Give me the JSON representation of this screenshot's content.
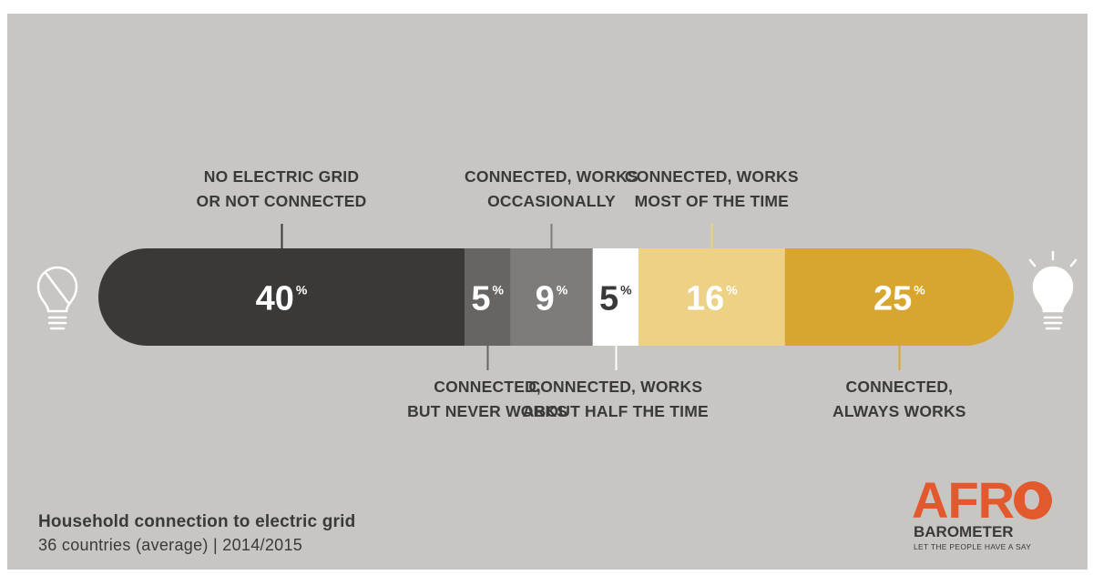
{
  "chart_data": {
    "type": "bar",
    "orientation": "horizontal-stacked",
    "categories": [
      "NO ELECTRIC GRID OR NOT CONNECTED",
      "CONNECTED, BUT NEVER WORKS",
      "CONNECTED, WORKS OCCASIONALLY",
      "CONNECTED, WORKS ABOUT HALF THE TIME",
      "CONNECTED, WORKS MOST OF THE TIME",
      "CONNECTED, ALWAYS WORKS"
    ],
    "values": [
      40,
      5,
      9,
      5,
      16,
      25
    ],
    "unit": "%",
    "segments": [
      {
        "label_lines": [
          "NO ELECTRIC GRID",
          "OR NOT CONNECTED"
        ],
        "value": 40,
        "value_text": "40",
        "color": "#3a3937",
        "text_color": "#ffffff",
        "label_side": "top"
      },
      {
        "label_lines": [
          "CONNECTED,",
          "BUT NEVER WORKS"
        ],
        "value": 5,
        "value_text": "5",
        "color": "#666564",
        "text_color": "#ffffff",
        "label_side": "bottom"
      },
      {
        "label_lines": [
          "CONNECTED, WORKS",
          "OCCASIONALLY"
        ],
        "value": 9,
        "value_text": "9",
        "color": "#7d7c7b",
        "text_color": "#ffffff",
        "label_side": "top"
      },
      {
        "label_lines": [
          "CONNECTED, WORKS",
          "ABOUT HALF THE TIME"
        ],
        "value": 5,
        "value_text": "5",
        "color": "#ffffff",
        "text_color": "#3a3937",
        "label_side": "bottom"
      },
      {
        "label_lines": [
          "CONNECTED, WORKS",
          "MOST OF THE TIME"
        ],
        "value": 16,
        "value_text": "16",
        "color": "#edd286",
        "text_color": "#ffffff",
        "label_side": "top"
      },
      {
        "label_lines": [
          "CONNECTED,",
          "ALWAYS WORKS"
        ],
        "value": 25,
        "value_text": "25",
        "color": "#d8a52e",
        "text_color": "#ffffff",
        "label_side": "bottom"
      }
    ],
    "percent_symbol": "%",
    "title": "Household connection to electric grid",
    "subtitle": "36 countries (average) | 2014/2015"
  },
  "footer": {
    "title": "Household connection to electric grid",
    "subtitle": "36 countries (average) | 2014/2015"
  },
  "logo": {
    "wordmark": "AFRO",
    "name": "BAROMETER",
    "tagline": "LET THE PEOPLE HAVE A SAY",
    "color": "#e2592d"
  },
  "icons": {
    "left": "lightbulb-off-icon",
    "right": "lightbulb-on-icon"
  }
}
